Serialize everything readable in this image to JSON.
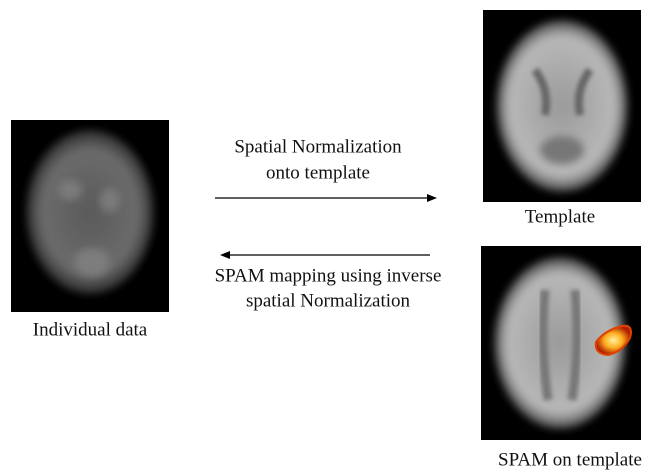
{
  "nodes": [
    {
      "label": "Individual data"
    },
    {
      "label": "Template"
    },
    {
      "label": "SPAM on template"
    }
  ],
  "edges": [
    {
      "label": [
        "Spatial Normalization",
        "onto template"
      ]
    },
    {
      "label": [
        "SPAM mapping using inverse",
        "spatial Normalization"
      ]
    }
  ]
}
